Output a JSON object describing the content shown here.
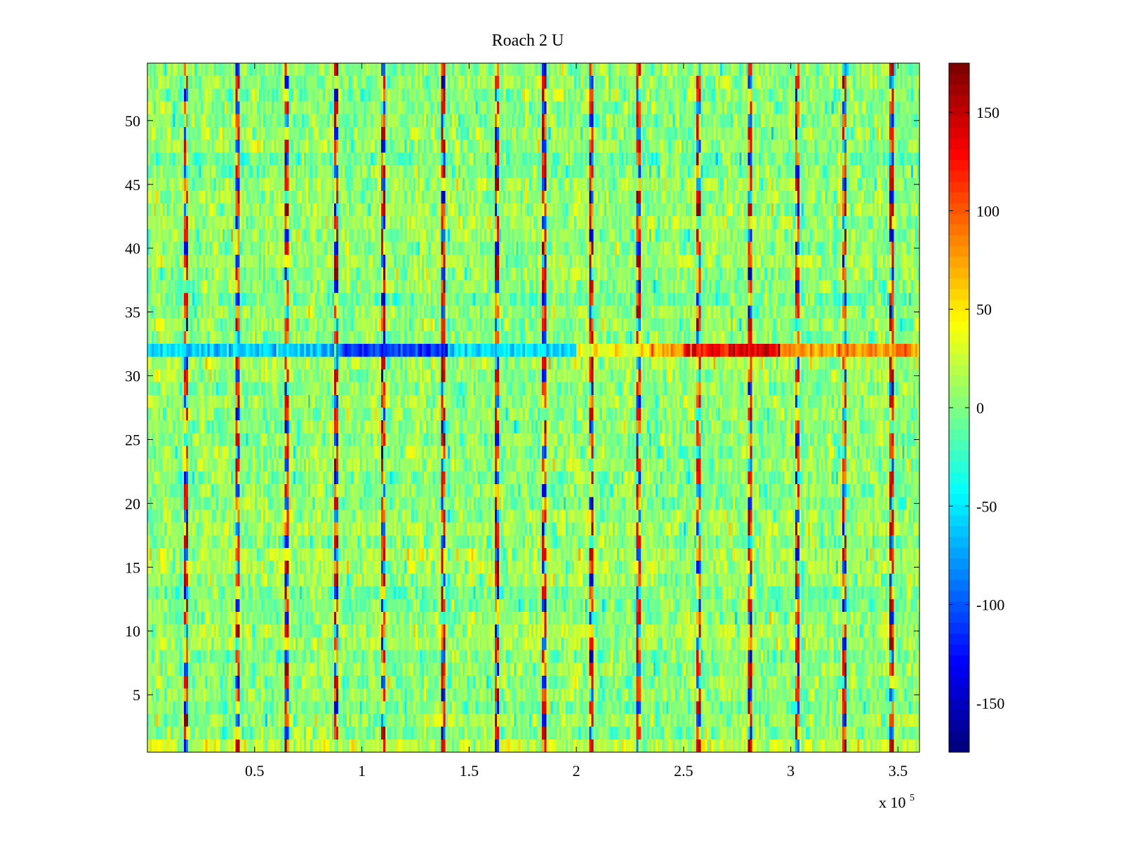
{
  "chart_data": {
    "type": "heatmap",
    "title": "Roach 2 U",
    "xlabel": "",
    "ylabel": "",
    "x_multiplier_label": "x 10",
    "x_multiplier_exponent": "5",
    "xlim": [
      0,
      3.6
    ],
    "ylim": [
      0.5,
      54.5
    ],
    "rows": 54,
    "columns": 360,
    "x_ticks": [
      {
        "value": 0.5,
        "label": "0.5"
      },
      {
        "value": 1.0,
        "label": "1"
      },
      {
        "value": 1.5,
        "label": "1.5"
      },
      {
        "value": 2.0,
        "label": "2"
      },
      {
        "value": 2.5,
        "label": "2.5"
      },
      {
        "value": 3.0,
        "label": "3"
      },
      {
        "value": 3.5,
        "label": "3.5"
      }
    ],
    "y_ticks": [
      {
        "value": 5,
        "label": "5"
      },
      {
        "value": 10,
        "label": "10"
      },
      {
        "value": 15,
        "label": "15"
      },
      {
        "value": 20,
        "label": "20"
      },
      {
        "value": 25,
        "label": "25"
      },
      {
        "value": 30,
        "label": "30"
      },
      {
        "value": 35,
        "label": "35"
      },
      {
        "value": 40,
        "label": "40"
      },
      {
        "value": 45,
        "label": "45"
      },
      {
        "value": 50,
        "label": "50"
      }
    ],
    "colorbar": {
      "colormap": "jet",
      "clim": [
        -175,
        175
      ],
      "levels": 64,
      "ticks": [
        {
          "value": 150,
          "label": "150"
        },
        {
          "value": 100,
          "label": "100"
        },
        {
          "value": 50,
          "label": "50"
        },
        {
          "value": 0,
          "label": "0"
        },
        {
          "value": -50,
          "label": "-50"
        },
        {
          "value": -100,
          "label": "-100"
        },
        {
          "value": -150,
          "label": "-150"
        }
      ]
    },
    "features": {
      "vertical_stripes_x": [
        0.18,
        0.42,
        0.65,
        0.88,
        1.1,
        1.38,
        1.63,
        1.85,
        2.07,
        2.29,
        2.57,
        2.81,
        3.03,
        3.25,
        3.47
      ],
      "horizontal_band": {
        "row": 32,
        "segments": [
          {
            "x_from": 0.0,
            "x_to": 0.9,
            "value": -60
          },
          {
            "x_from": 0.9,
            "x_to": 1.4,
            "value": -110
          },
          {
            "x_from": 1.4,
            "x_to": 2.0,
            "value": -50
          },
          {
            "x_from": 2.0,
            "x_to": 2.3,
            "value": 40
          },
          {
            "x_from": 2.3,
            "x_to": 2.5,
            "value": 70
          },
          {
            "x_from": 2.5,
            "x_to": 2.95,
            "value": 130
          },
          {
            "x_from": 2.95,
            "x_to": 3.6,
            "value": 75
          }
        ]
      },
      "row_noise_std": 18,
      "column_noise_std": 12
    }
  }
}
